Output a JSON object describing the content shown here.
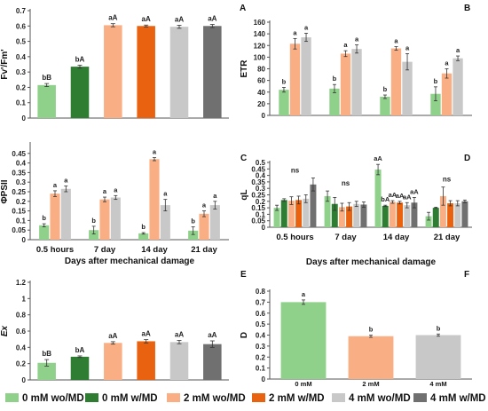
{
  "legend": [
    {
      "label": "0 mM wo/MD",
      "color": "#8fd18a"
    },
    {
      "label": "0 mM w/MD",
      "color": "#2e7d32"
    },
    {
      "label": "2 mM wo/MD",
      "color": "#f9ae84"
    },
    {
      "label": "2 mM w/MD",
      "color": "#e8620f"
    },
    {
      "label": "4 mM wo/MD",
      "color": "#c8c8c8"
    },
    {
      "label": "4 mM w/MD",
      "color": "#707070"
    }
  ],
  "chart_data": [
    {
      "id": "fvfm",
      "panel_label": "",
      "type": "bar",
      "ylabel": "Fv'/Fm'",
      "ylim": [
        0,
        0.7
      ],
      "yticks": [
        "0",
        "0.1",
        "0.2",
        "0.3",
        "0.4",
        "0.5",
        "0.6",
        "0.7"
      ],
      "series": [
        {
          "values": [
            0.215
          ],
          "err": [
            0.01
          ],
          "labels": [
            "bB"
          ],
          "color": "#8fd18a"
        },
        {
          "values": [
            0.335
          ],
          "err": [
            0.01
          ],
          "labels": [
            "bA"
          ],
          "color": "#2e7d32"
        },
        {
          "values": [
            0.605
          ],
          "err": [
            0.01
          ],
          "labels": [
            "aA"
          ],
          "color": "#f9ae84"
        },
        {
          "values": [
            0.6
          ],
          "err": [
            0.006
          ],
          "labels": [
            "aA"
          ],
          "color": "#e8620f"
        },
        {
          "values": [
            0.595
          ],
          "err": [
            0.01
          ],
          "labels": [
            "aA"
          ],
          "color": "#c8c8c8"
        },
        {
          "values": [
            0.6
          ],
          "err": [
            0.01
          ],
          "labels": [
            "aA"
          ],
          "color": "#707070"
        }
      ]
    },
    {
      "id": "etr",
      "panel_label": "A",
      "corner_label": "B",
      "type": "bar",
      "ylabel": "ETR",
      "ylim": [
        0,
        160
      ],
      "yticks": [
        "0",
        "20",
        "40",
        "60",
        "80",
        "100",
        "120",
        "140",
        "160"
      ],
      "categories": [
        "0.5 hours",
        "7 day",
        "14 day",
        "21 day"
      ],
      "series": [
        {
          "values": [
            44,
            46,
            32,
            37
          ],
          "err": [
            4,
            7,
            3,
            12
          ],
          "labels": [
            "b",
            "b",
            "b",
            "b"
          ],
          "color": "#8fd18a"
        },
        {
          "values": [
            123,
            106,
            115,
            72
          ],
          "err": [
            9,
            5,
            3,
            8
          ],
          "labels": [
            "a",
            "a",
            "a",
            "a"
          ],
          "color": "#f9ae84"
        },
        {
          "values": [
            134,
            114,
            92,
            98
          ],
          "err": [
            7,
            7,
            14,
            4
          ],
          "labels": [
            "a",
            "a",
            "a",
            "a"
          ],
          "color": "#c8c8c8"
        }
      ]
    },
    {
      "id": "phipsii",
      "panel_label": "",
      "type": "bar",
      "ylabel": "ΦPSII",
      "ylim": [
        0,
        0.5
      ],
      "yticks": [
        "0",
        "0.05",
        "0.1",
        "0.15",
        "0.2",
        "0.25",
        "0.3",
        "0.35",
        "0.4",
        "0.45"
      ],
      "categories": [
        "0.5 hours",
        "7 day",
        "14 day",
        "21 day"
      ],
      "xlabel": "Days after mechanical damage",
      "series": [
        {
          "values": [
            0.075,
            0.05,
            0.033,
            0.047
          ],
          "err": [
            0.008,
            0.02,
            0.004,
            0.02
          ],
          "labels": [
            "b",
            "b",
            "b",
            "b"
          ],
          "color": "#8fd18a"
        },
        {
          "values": [
            0.24,
            0.21,
            0.42,
            0.135
          ],
          "err": [
            0.015,
            0.012,
            0.008,
            0.015
          ],
          "labels": [
            "a",
            "a",
            "a",
            "a"
          ],
          "color": "#f9ae84"
        },
        {
          "values": [
            0.265,
            0.22,
            0.18,
            0.18
          ],
          "err": [
            0.015,
            0.01,
            0.03,
            0.02
          ],
          "labels": [
            "a",
            "a",
            "a",
            "a"
          ],
          "color": "#c8c8c8"
        }
      ]
    },
    {
      "id": "ql",
      "panel_label": "C",
      "corner_label": "D",
      "type": "bar",
      "ylabel": "qL",
      "ylim": [
        0,
        0.5
      ],
      "yticks": [
        "0",
        "0.05",
        "0.1",
        "0.15",
        "0.2",
        "0.25",
        "0.3",
        "0.35",
        "0.4",
        "0.45",
        "0.5"
      ],
      "categories": [
        "0.5 hours",
        "7 day",
        "14 day",
        "21 day"
      ],
      "xlabel": "Days after mechanical damage",
      "group_labels": [
        "ns",
        "ns",
        "",
        "ns"
      ],
      "series": [
        {
          "values": [
            0.15,
            0.24,
            0.445,
            0.085
          ],
          "err": [
            0.02,
            0.04,
            0.04,
            0.03
          ],
          "labels": [
            "",
            "",
            "aA",
            ""
          ],
          "color": "#8fd18a"
        },
        {
          "values": [
            0.21,
            0.18,
            0.165,
            0.15
          ],
          "err": [
            0.01,
            0.05,
            0.005,
            0.005
          ],
          "labels": [
            "",
            "",
            "bA",
            ""
          ],
          "color": "#2e7d32"
        },
        {
          "values": [
            0.205,
            0.155,
            0.195,
            0.24
          ],
          "err": [
            0.03,
            0.03,
            0.01,
            0.07
          ],
          "labels": [
            "",
            "",
            "aA",
            ""
          ],
          "color": "#f9ae84"
        },
        {
          "values": [
            0.21,
            0.16,
            0.19,
            0.185
          ],
          "err": [
            0.03,
            0.03,
            0.01,
            0.02
          ],
          "labels": [
            "",
            "",
            "aA",
            ""
          ],
          "color": "#e8620f"
        },
        {
          "values": [
            0.22,
            0.18,
            0.17,
            0.185
          ],
          "err": [
            0.03,
            0.02,
            0.02,
            0.02
          ],
          "labels": [
            "",
            "",
            "aA",
            ""
          ],
          "color": "#c8c8c8"
        },
        {
          "values": [
            0.33,
            0.175,
            0.19,
            0.2
          ],
          "err": [
            0.05,
            0.02,
            0.04,
            0.01
          ],
          "labels": [
            "",
            "",
            "aA",
            ""
          ],
          "color": "#707070"
        }
      ]
    },
    {
      "id": "ex",
      "panel_label": "",
      "type": "bar",
      "ylabel": "Ex",
      "ylim": [
        0,
        1.2
      ],
      "yticks": [
        "0",
        "0.2",
        "0.4",
        "0.6",
        "0.8",
        "1",
        "1.2"
      ],
      "series": [
        {
          "values": [
            0.21
          ],
          "err": [
            0.04
          ],
          "labels": [
            "bB"
          ],
          "color": "#8fd18a"
        },
        {
          "values": [
            0.285
          ],
          "err": [
            0.01
          ],
          "labels": [
            "bA"
          ],
          "color": "#2e7d32"
        },
        {
          "values": [
            0.455
          ],
          "err": [
            0.015
          ],
          "labels": [
            "aA"
          ],
          "color": "#f9ae84"
        },
        {
          "values": [
            0.475
          ],
          "err": [
            0.02
          ],
          "labels": [
            "aA"
          ],
          "color": "#e8620f"
        },
        {
          "values": [
            0.465
          ],
          "err": [
            0.02
          ],
          "labels": [
            "aA"
          ],
          "color": "#c8c8c8"
        },
        {
          "values": [
            0.44
          ],
          "err": [
            0.04
          ],
          "labels": [
            "aA"
          ],
          "color": "#707070"
        }
      ]
    },
    {
      "id": "d",
      "panel_label": "E",
      "corner_label": "F",
      "type": "bar",
      "ylabel": "D",
      "ylim": [
        0,
        0.8
      ],
      "yticks": [
        "0",
        "0.1",
        "0.2",
        "0.3",
        "0.4",
        "0.5",
        "0.6",
        "0.7",
        "0.8"
      ],
      "categories": [
        "0 mM",
        "2 mM",
        "4 mM"
      ],
      "series": [
        {
          "values": [
            0.7,
            0.39,
            0.4
          ],
          "err": [
            0.02,
            0.01,
            0.01
          ],
          "labels": [
            "a",
            "b",
            "b"
          ],
          "colors": [
            "#8fd18a",
            "#f9ae84",
            "#c8c8c8"
          ]
        }
      ]
    }
  ]
}
